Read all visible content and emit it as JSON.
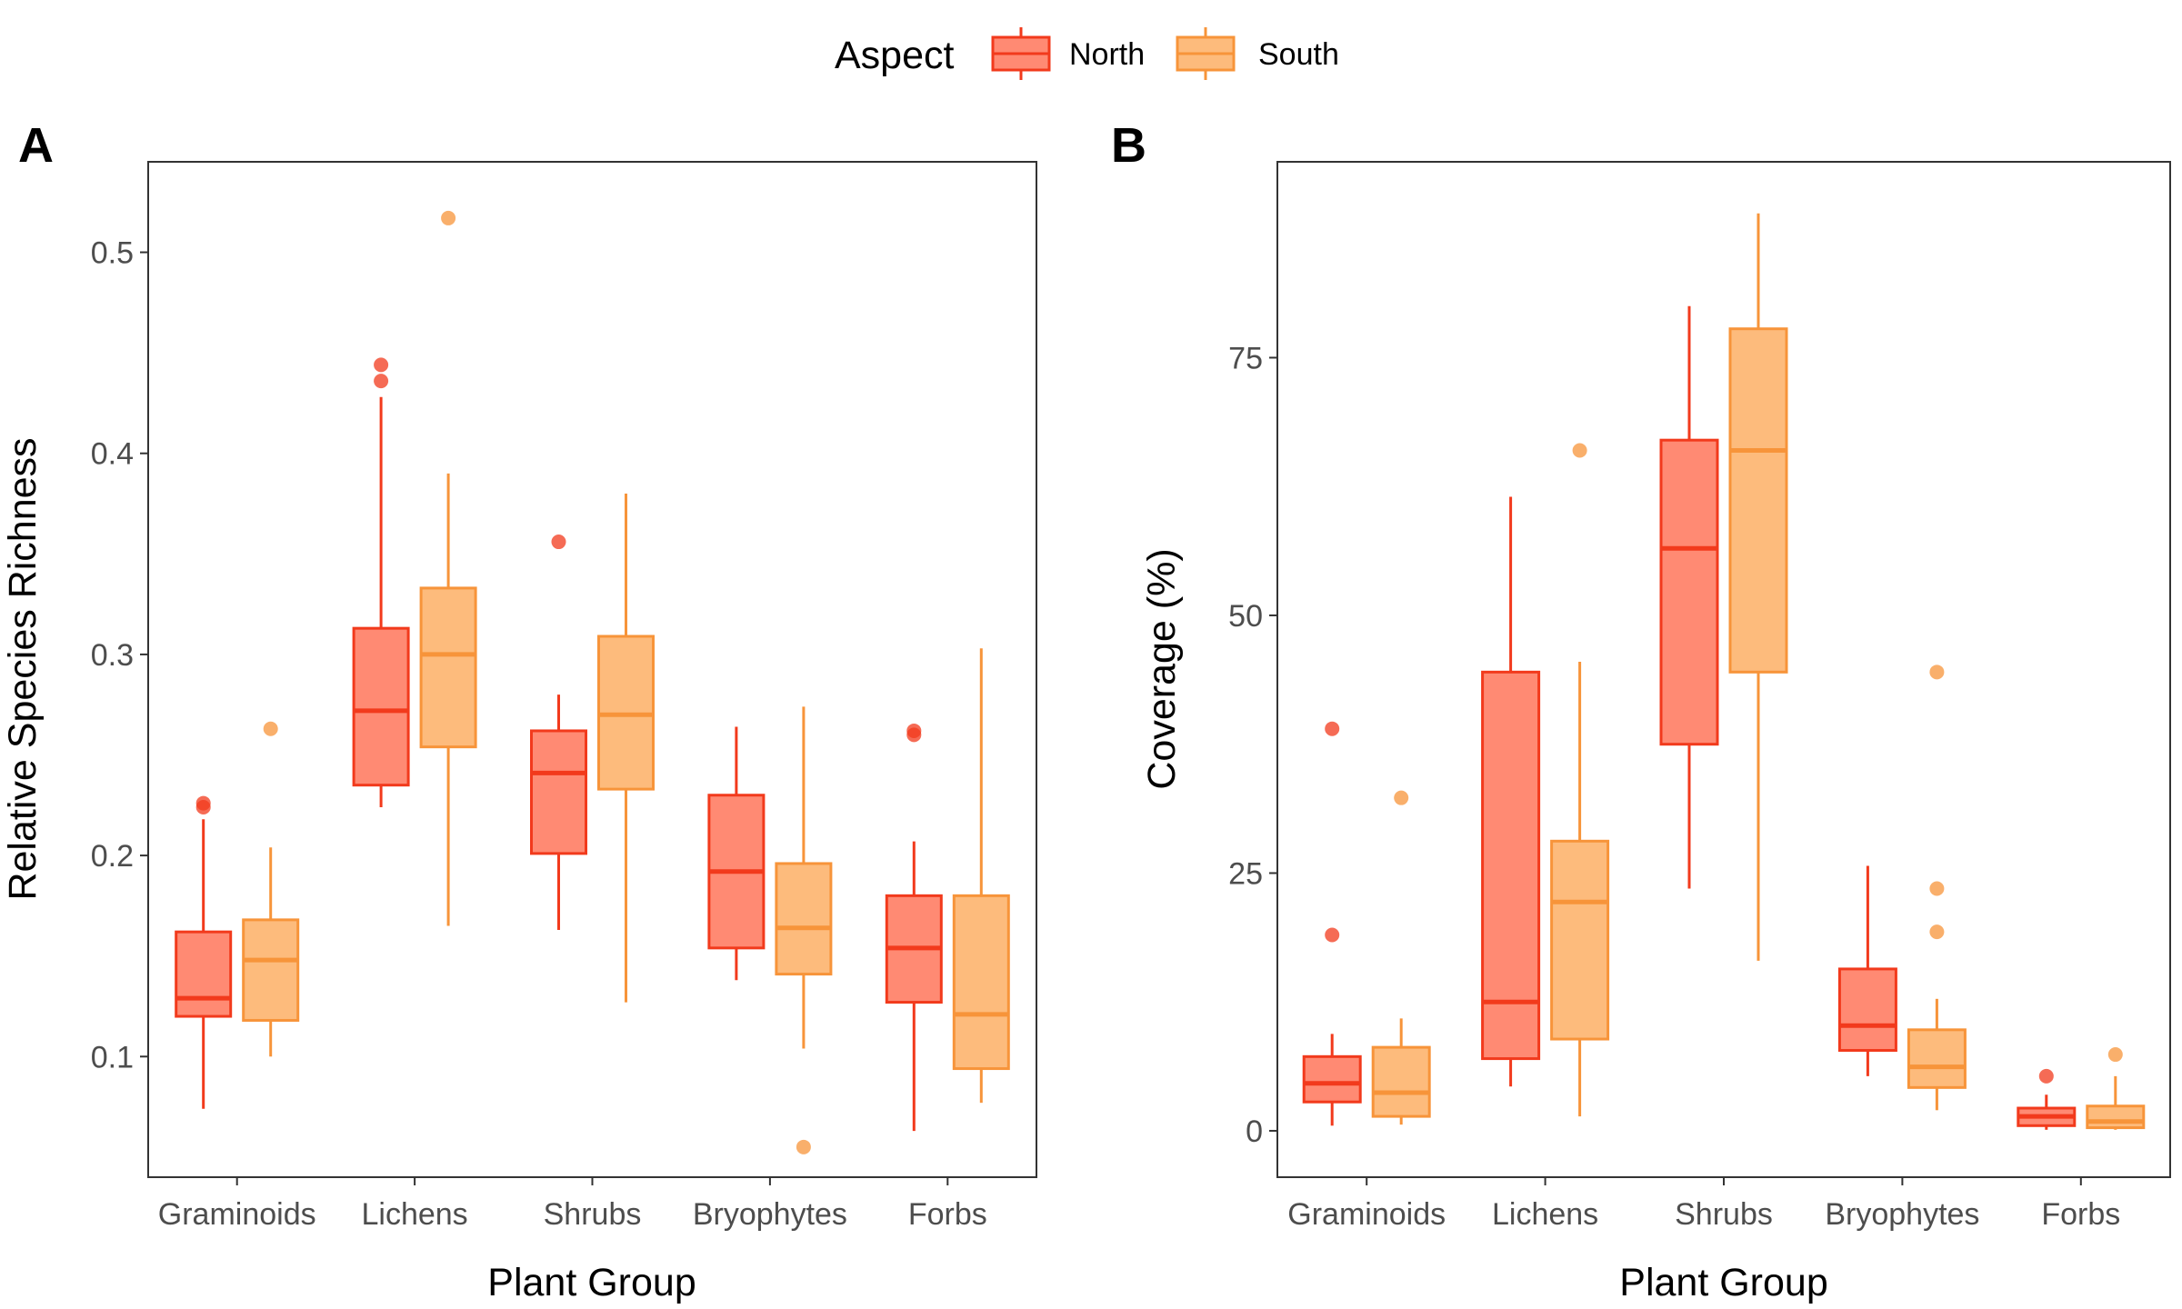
{
  "legend": {
    "title": "Aspect",
    "items": [
      {
        "label": "North",
        "fill": "#FF8A73",
        "stroke": "#F23A1C"
      },
      {
        "label": "South",
        "fill": "#FDBB7C",
        "stroke": "#F7943A"
      }
    ]
  },
  "chart_data": [
    {
      "panel": "A",
      "type": "box",
      "xlabel": "Plant Group",
      "ylabel": "Relative Species Richness",
      "categories": [
        "Graminoids",
        "Lichens",
        "Shrubs",
        "Bryophytes",
        "Forbs"
      ],
      "ylim": [
        0.04,
        0.545
      ],
      "yticks": [
        0.1,
        0.2,
        0.3,
        0.4,
        0.5
      ],
      "ytick_labels": [
        "0.1",
        "0.2",
        "0.3",
        "0.4",
        "0.5"
      ],
      "series": [
        {
          "name": "North",
          "boxes": [
            {
              "q1": 0.12,
              "median": 0.129,
              "q3": 0.162,
              "low": 0.074,
              "high": 0.218,
              "outliers": [
                0.224,
                0.226
              ]
            },
            {
              "q1": 0.235,
              "median": 0.272,
              "q3": 0.313,
              "low": 0.224,
              "high": 0.428,
              "outliers": [
                0.436,
                0.444
              ]
            },
            {
              "q1": 0.201,
              "median": 0.241,
              "q3": 0.262,
              "low": 0.163,
              "high": 0.28,
              "outliers": [
                0.356
              ]
            },
            {
              "q1": 0.154,
              "median": 0.192,
              "q3": 0.23,
              "low": 0.138,
              "high": 0.264,
              "outliers": []
            },
            {
              "q1": 0.127,
              "median": 0.154,
              "q3": 0.18,
              "low": 0.063,
              "high": 0.207,
              "outliers": [
                0.26,
                0.262
              ]
            }
          ]
        },
        {
          "name": "South",
          "boxes": [
            {
              "q1": 0.118,
              "median": 0.148,
              "q3": 0.168,
              "low": 0.1,
              "high": 0.204,
              "outliers": [
                0.263
              ]
            },
            {
              "q1": 0.254,
              "median": 0.3,
              "q3": 0.333,
              "low": 0.165,
              "high": 0.39,
              "outliers": [
                0.517
              ]
            },
            {
              "q1": 0.233,
              "median": 0.27,
              "q3": 0.309,
              "low": 0.127,
              "high": 0.38,
              "outliers": []
            },
            {
              "q1": 0.141,
              "median": 0.164,
              "q3": 0.196,
              "low": 0.104,
              "high": 0.274,
              "outliers": [
                0.055
              ]
            },
            {
              "q1": 0.094,
              "median": 0.121,
              "q3": 0.18,
              "low": 0.077,
              "high": 0.303,
              "outliers": []
            }
          ]
        }
      ]
    },
    {
      "panel": "B",
      "type": "box",
      "xlabel": "Plant Group",
      "ylabel": "Coverage (%)",
      "categories": [
        "Graminoids",
        "Lichens",
        "Shrubs",
        "Bryophytes",
        "Forbs"
      ],
      "ylim": [
        -4.5,
        94
      ],
      "yticks": [
        0,
        25,
        50,
        75
      ],
      "ytick_labels": [
        "0",
        "25",
        "50",
        "75"
      ],
      "series": [
        {
          "name": "North",
          "boxes": [
            {
              "q1": 2.8,
              "median": 4.6,
              "q3": 7.2,
              "low": 0.5,
              "high": 9.4,
              "outliers": [
                19.0,
                39.0
              ]
            },
            {
              "q1": 7.0,
              "median": 12.5,
              "q3": 44.5,
              "low": 4.3,
              "high": 61.5,
              "outliers": []
            },
            {
              "q1": 37.5,
              "median": 56.5,
              "q3": 67.0,
              "low": 23.5,
              "high": 80.0,
              "outliers": []
            },
            {
              "q1": 7.8,
              "median": 10.2,
              "q3": 15.7,
              "low": 5.3,
              "high": 25.7,
              "outliers": []
            },
            {
              "q1": 0.5,
              "median": 1.4,
              "q3": 2.2,
              "low": 0.1,
              "high": 3.5,
              "outliers": [
                5.3
              ]
            }
          ]
        },
        {
          "name": "South",
          "boxes": [
            {
              "q1": 1.4,
              "median": 3.7,
              "q3": 8.1,
              "low": 0.6,
              "high": 10.9,
              "outliers": [
                32.3
              ]
            },
            {
              "q1": 8.9,
              "median": 22.2,
              "q3": 28.1,
              "low": 1.4,
              "high": 45.5,
              "outliers": [
                66.0
              ]
            },
            {
              "q1": 44.5,
              "median": 66.0,
              "q3": 77.8,
              "low": 16.5,
              "high": 89.0,
              "outliers": []
            },
            {
              "q1": 4.2,
              "median": 6.2,
              "q3": 9.8,
              "low": 2.0,
              "high": 12.8,
              "outliers": [
                19.3,
                23.5,
                44.5
              ]
            },
            {
              "q1": 0.3,
              "median": 0.9,
              "q3": 2.4,
              "low": 0.1,
              "high": 5.3,
              "outliers": [
                7.4
              ]
            }
          ]
        }
      ]
    }
  ]
}
